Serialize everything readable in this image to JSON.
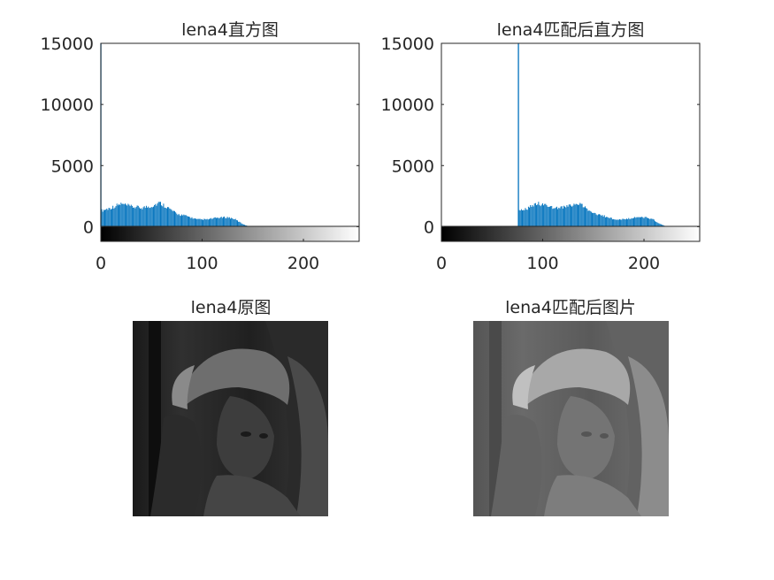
{
  "colors": {
    "bar": "#0072BD",
    "axis": "#262626",
    "text": "#262626",
    "background": "#ffffff"
  },
  "chart_data": [
    {
      "type": "bar",
      "title": "lena4直方图",
      "xlabel": "",
      "ylabel": "",
      "xlim": [
        0,
        255
      ],
      "ylim": [
        -1200,
        15000
      ],
      "x_ticks": [
        0,
        100,
        200
      ],
      "x_tick_labels": [
        "0",
        "100",
        "200"
      ],
      "y_ticks": [
        0,
        5000,
        10000,
        15000
      ],
      "y_tick_labels": [
        "0",
        "5000",
        "10000",
        "15000"
      ],
      "grid": false,
      "colorbar": "grayscale 0-255 below axis",
      "spike": {
        "x": 0,
        "value": 15000
      },
      "envelope": [
        [
          1,
          1450
        ],
        [
          10,
          1700
        ],
        [
          20,
          2050
        ],
        [
          30,
          1800
        ],
        [
          40,
          1700
        ],
        [
          50,
          1850
        ],
        [
          58,
          2150
        ],
        [
          65,
          1800
        ],
        [
          75,
          1150
        ],
        [
          85,
          950
        ],
        [
          95,
          650
        ],
        [
          105,
          650
        ],
        [
          115,
          800
        ],
        [
          125,
          850
        ],
        [
          132,
          700
        ],
        [
          140,
          250
        ],
        [
          146,
          30
        ],
        [
          148,
          0
        ]
      ]
    },
    {
      "type": "bar",
      "title": "lena4匹配后直方图",
      "xlabel": "",
      "ylabel": "",
      "xlim": [
        0,
        255
      ],
      "ylim": [
        -1200,
        15000
      ],
      "x_ticks": [
        0,
        100,
        200
      ],
      "x_tick_labels": [
        "0",
        "100",
        "200"
      ],
      "y_ticks": [
        0,
        5000,
        10000,
        15000
      ],
      "y_tick_labels": [
        "0",
        "5000",
        "10000",
        "15000"
      ],
      "grid": false,
      "colorbar": "grayscale 0-255 below axis",
      "spike": {
        "x": 76,
        "value": 15000
      },
      "envelope": [
        [
          77,
          1450
        ],
        [
          86,
          1700
        ],
        [
          96,
          2050
        ],
        [
          106,
          1800
        ],
        [
          116,
          1700
        ],
        [
          126,
          1850
        ],
        [
          134,
          2150
        ],
        [
          141,
          1800
        ],
        [
          151,
          1150
        ],
        [
          161,
          950
        ],
        [
          171,
          650
        ],
        [
          181,
          650
        ],
        [
          191,
          800
        ],
        [
          201,
          850
        ],
        [
          208,
          700
        ],
        [
          216,
          250
        ],
        [
          222,
          30
        ],
        [
          224,
          0
        ]
      ]
    }
  ],
  "images": [
    {
      "title": "lena4原图",
      "style": "dark"
    },
    {
      "title": "lena4匹配后图片",
      "style": "brightened"
    }
  ]
}
